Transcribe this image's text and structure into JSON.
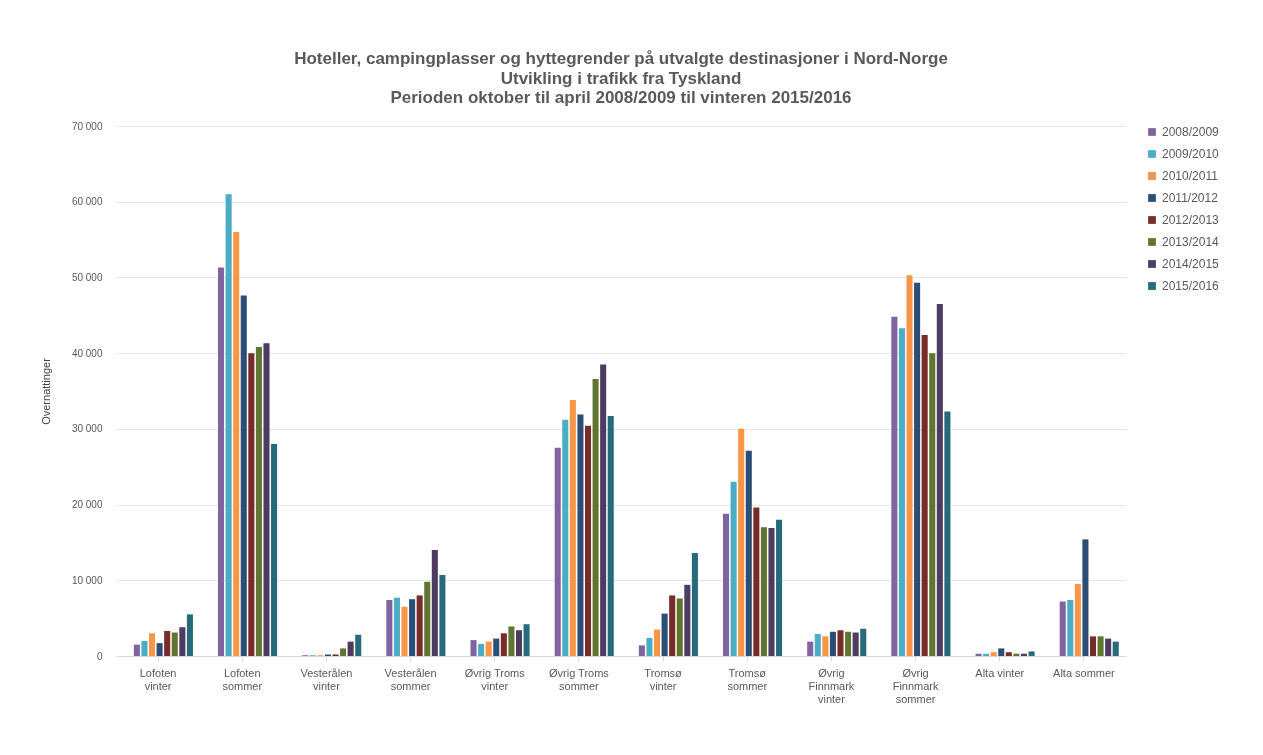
{
  "chart_data": {
    "type": "bar",
    "title": "Hoteller, campingplasser og hyttegrender på utvalgte destinasjoner i Nord-Norge",
    "subtitle": [
      "Utvikling i trafikk fra Tyskland",
      "Perioden oktober til april 2008/2009 til vinteren 2015/2016"
    ],
    "ylabel": "Overnattinger",
    "categories": [
      "Lofoten vinter",
      "Lofoten sommer",
      "Vesterålen vinter",
      "Vesterålen sommer",
      "Øvrig Troms vinter",
      "Øvrig Troms sommer",
      "Tromsø vinter",
      "Tromsø sommer",
      "Øvrig Finnmark vinter",
      "Øvrig Finnmark sommer",
      "Alta vinter",
      "Alta sommer"
    ],
    "series": [
      {
        "name": "2008/2009",
        "color": "#8064a2",
        "values": [
          1500,
          51300,
          100,
          7400,
          2100,
          27500,
          1400,
          18800,
          1900,
          44800,
          300,
          7200
        ]
      },
      {
        "name": "2009/2010",
        "color": "#4bacc6",
        "values": [
          2000,
          61000,
          100,
          7700,
          1600,
          31200,
          2400,
          23000,
          2900,
          43300,
          300,
          7400
        ]
      },
      {
        "name": "2010/2011",
        "color": "#f79646",
        "values": [
          3000,
          56000,
          100,
          6500,
          1900,
          33800,
          3500,
          30000,
          2600,
          50300,
          500,
          9500
        ]
      },
      {
        "name": "2011/2012",
        "color": "#2c4d75",
        "values": [
          1700,
          47600,
          200,
          7500,
          2300,
          31900,
          5600,
          27100,
          3200,
          49300,
          1000,
          15400
        ]
      },
      {
        "name": "2012/2013",
        "color": "#772c2a",
        "values": [
          3300,
          40000,
          200,
          8000,
          3000,
          30400,
          8000,
          19600,
          3400,
          42400,
          500,
          2600
        ]
      },
      {
        "name": "2013/2014",
        "color": "#5f7530",
        "values": [
          3100,
          40800,
          1000,
          9800,
          3900,
          36600,
          7600,
          17000,
          3200,
          40000,
          300,
          2600
        ]
      },
      {
        "name": "2014/2015",
        "color": "#4d3b62",
        "values": [
          3800,
          41300,
          1900,
          14000,
          3400,
          38500,
          9400,
          16900,
          3100,
          46500,
          300,
          2300
        ]
      },
      {
        "name": "2015/2016",
        "color": "#276a7c",
        "values": [
          5500,
          28000,
          2800,
          10700,
          4200,
          31700,
          13600,
          18000,
          3600,
          32300,
          600,
          1900
        ]
      }
    ],
    "ylim": [
      0,
      70000
    ],
    "yticks": [
      {
        "value": 0,
        "label": "0"
      },
      {
        "value": 10000,
        "label": "10 000"
      },
      {
        "value": 20000,
        "label": "20 000"
      },
      {
        "value": 30000,
        "label": "30 000"
      },
      {
        "value": 40000,
        "label": "40 000"
      },
      {
        "value": 50000,
        "label": "50 000"
      },
      {
        "value": 60000,
        "label": "60 000"
      },
      {
        "value": 70000,
        "label": "70 000"
      }
    ],
    "grid": "y",
    "legend": "right"
  }
}
